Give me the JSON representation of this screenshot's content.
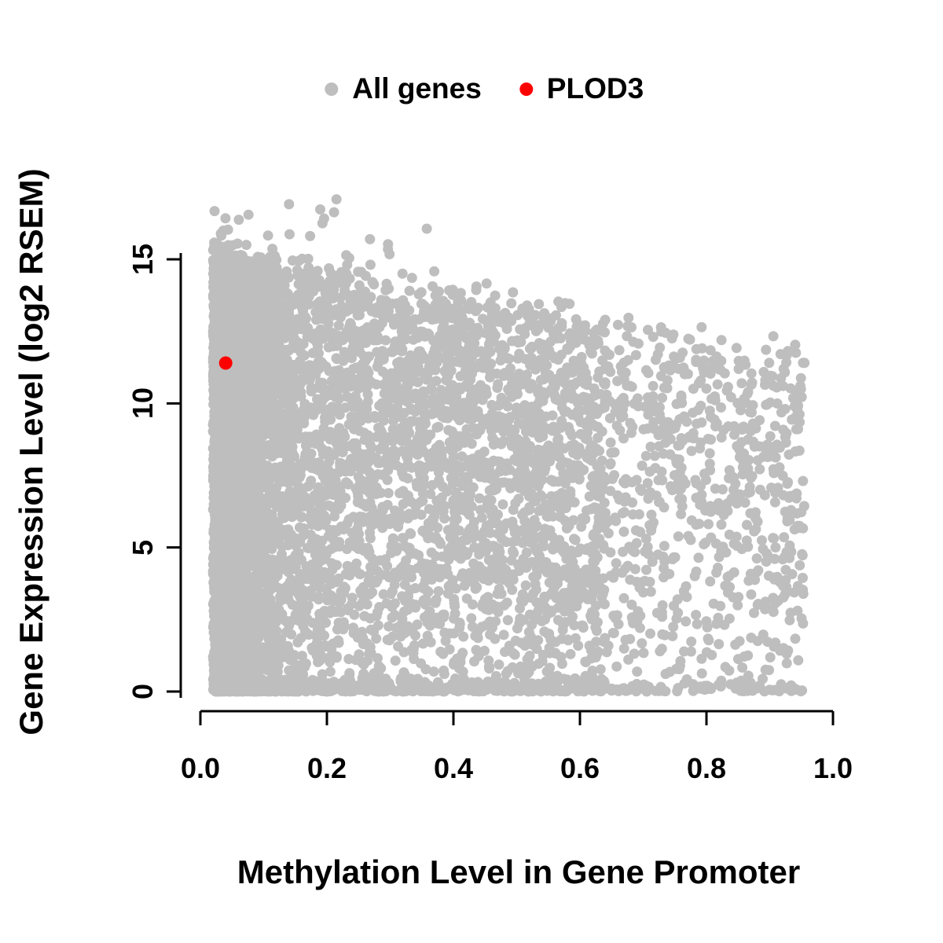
{
  "chart_data": {
    "type": "scatter",
    "title": "",
    "xlabel": "Methylation Level in Gene Promoter",
    "ylabel": "Gene Expression Level (log2 RSEM)",
    "xlim": [
      0,
      1
    ],
    "ylim": [
      0,
      17.5
    ],
    "x_ticks": [
      "0.0",
      "0.2",
      "0.4",
      "0.6",
      "0.8",
      "1.0"
    ],
    "y_ticks": [
      "0",
      "5",
      "10",
      "15"
    ],
    "grid": false,
    "legend_position": "top-center",
    "axis_color": "#000000",
    "series": [
      {
        "name": "All genes",
        "color": "#bebebe",
        "marker": "filled-circle",
        "n_points": 8000,
        "seed": 42,
        "x_range": [
          0.02,
          0.955
        ],
        "y_range": [
          0,
          17.2
        ],
        "upper_envelope": {
          "y_at_x0": 15.2,
          "y_at_x1": 11.4
        },
        "distribution": "dense cloud; most points at methylation < 0.3; expression fills 0 up to an upper envelope that declines from ~15 at low methylation to ~11.5 at high methylation; dense row of points at expression 0 across full methylation range; sparse outliers up to ~17 at methylation < 0.4"
      },
      {
        "name": "PLOD3",
        "color": "#ff0000",
        "marker": "filled-circle",
        "points": [
          [
            0.04,
            11.4
          ]
        ]
      }
    ]
  }
}
